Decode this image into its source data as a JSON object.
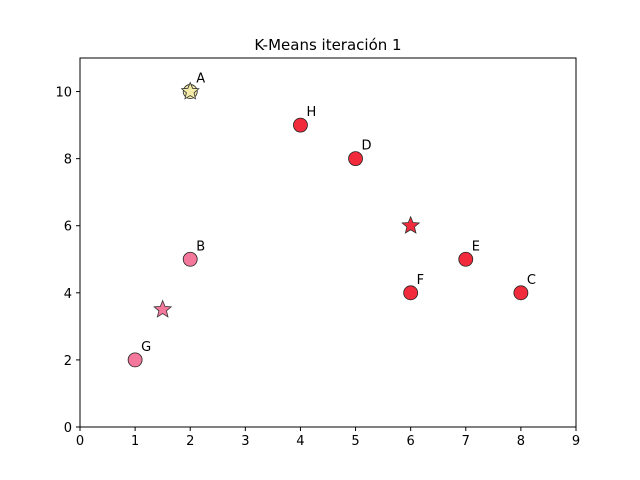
{
  "chart_data": {
    "type": "scatter",
    "title": "K-Means iteración 1",
    "xlabel": "",
    "ylabel": "",
    "xlim": [
      0,
      9
    ],
    "ylim": [
      0,
      11
    ],
    "xticks": [
      0,
      1,
      2,
      3,
      4,
      5,
      6,
      7,
      8,
      9
    ],
    "yticks": [
      0,
      2,
      4,
      6,
      8,
      10
    ],
    "grid": false,
    "cluster_colors": [
      "#f5eba8",
      "#f4789c",
      "#f12b3c"
    ],
    "points": [
      {
        "label": "A",
        "x": 2,
        "y": 10,
        "cluster": 0
      },
      {
        "label": "B",
        "x": 2,
        "y": 5,
        "cluster": 1
      },
      {
        "label": "C",
        "x": 8,
        "y": 4,
        "cluster": 2
      },
      {
        "label": "D",
        "x": 5,
        "y": 8,
        "cluster": 2
      },
      {
        "label": "E",
        "x": 7,
        "y": 5,
        "cluster": 2
      },
      {
        "label": "F",
        "x": 6,
        "y": 4,
        "cluster": 2
      },
      {
        "label": "G",
        "x": 1,
        "y": 2,
        "cluster": 1
      },
      {
        "label": "H",
        "x": 4,
        "y": 9,
        "cluster": 2
      }
    ],
    "centroids": [
      {
        "x": 2,
        "y": 10,
        "cluster": 0
      },
      {
        "x": 1.5,
        "y": 3.5,
        "cluster": 1
      },
      {
        "x": 6,
        "y": 6,
        "cluster": 2
      }
    ]
  }
}
